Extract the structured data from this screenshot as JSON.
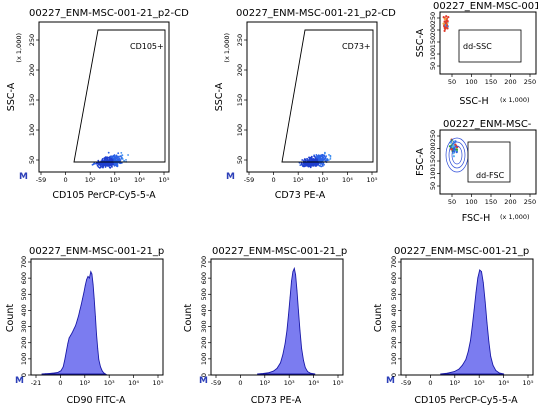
{
  "chart_data": [
    {
      "id": "cd105-dot",
      "type": "scatter",
      "title": "00227_ENM-MSC-001-21_p2-CD",
      "xlabel": "CD105 PerCP-Cy5-5-A",
      "ylabel": "SSC-A",
      "y_multiplier": "(x 1,000)",
      "x_ticks": [
        "-59",
        "0",
        "10²",
        "10³",
        "10⁴",
        "10⁵"
      ],
      "y_ticks": [
        "50",
        "100",
        "150",
        "200",
        "250"
      ],
      "gate_label": "CD105+",
      "marker": "M"
    },
    {
      "id": "cd73-dot",
      "type": "scatter",
      "title": "00227_ENM-MSC-001-21_p2-CD",
      "xlabel": "CD73 PE-A",
      "ylabel": "SSC-A",
      "y_multiplier": "(x 1,000)",
      "x_ticks": [
        "-59",
        "0",
        "10²",
        "10³",
        "10⁴",
        "10⁵"
      ],
      "y_ticks": [
        "50",
        "100",
        "150",
        "200",
        "250"
      ],
      "gate_label": "CD73+",
      "marker": "M"
    },
    {
      "id": "ssc-dot",
      "type": "scatter",
      "title": "00227_ENM-MSC-001-",
      "xlabel": "SSC-H",
      "ylabel": "SSC-A",
      "multiplier": "(x 1,000)",
      "x_ticks": [
        "50",
        "100",
        "150",
        "200",
        "250"
      ],
      "y_ticks": [
        "50",
        "100",
        "150",
        "200",
        "250"
      ],
      "gate_label": "dd-SSC"
    },
    {
      "id": "fsc-dot",
      "type": "scatter",
      "title": "00227_ENM-MSC-",
      "xlabel": "FSC-H",
      "ylabel": "FSC-A",
      "multiplier": "(x 1,000)",
      "x_ticks": [
        "50",
        "100",
        "150",
        "200",
        "250"
      ],
      "y_ticks": [
        "50",
        "100",
        "150",
        "200",
        "250"
      ],
      "gate_label": "dd-FSC"
    },
    {
      "id": "cd90-hist",
      "type": "area",
      "title": "00227_ENM-MSC-001-21_p",
      "xlabel": "CD90 FITC-A",
      "ylabel": "Count",
      "y_ticks": [
        "0",
        "100",
        "200",
        "300",
        "400",
        "500",
        "600",
        "700"
      ],
      "x_ticks": [
        "-21",
        "0",
        "10²",
        "10³",
        "10⁴",
        "10⁵"
      ],
      "marker": "M",
      "x": [
        -0.05,
        0.12,
        0.3,
        0.5,
        0.65,
        0.78,
        0.88,
        0.95,
        1.03,
        1.08,
        1.14,
        1.2,
        1.26,
        1.31,
        1.36,
        1.41,
        1.46,
        1.5,
        1.55,
        1.6,
        1.66,
        1.72,
        1.78,
        1.84,
        1.9,
        1.96,
        2.02,
        2.08,
        2.13,
        2.18,
        2.23,
        2.28,
        2.33,
        2.38,
        2.43,
        2.5,
        2.58,
        2.65,
        2.72
      ],
      "values": [
        0,
        2,
        4,
        6,
        10,
        20,
        45,
        90,
        150,
        190,
        225,
        240,
        255,
        270,
        285,
        300,
        320,
        340,
        365,
        395,
        430,
        470,
        510,
        555,
        590,
        610,
        600,
        640,
        625,
        560,
        470,
        360,
        250,
        160,
        90,
        45,
        18,
        6,
        0
      ]
    },
    {
      "id": "cd73-hist",
      "type": "area",
      "title": "00227_ENM-MSC-001-21_p",
      "xlabel": "CD73 PE-A",
      "ylabel": "Count",
      "y_ticks": [
        "0",
        "100",
        "200",
        "300",
        "400",
        "500",
        "600",
        "700"
      ],
      "x_ticks": [
        "-59",
        "0",
        "10²",
        "10³",
        "10⁴",
        "10⁵"
      ],
      "marker": "M",
      "x": [
        1.5,
        1.75,
        2.0,
        2.2,
        2.35,
        2.5,
        2.6,
        2.7,
        2.78,
        2.85,
        2.92,
        2.98,
        3.04,
        3.1,
        3.16,
        3.22,
        3.28,
        3.35,
        3.42,
        3.5,
        3.58,
        3.68,
        3.8,
        4.0
      ],
      "values": [
        0,
        3,
        8,
        18,
        35,
        70,
        120,
        190,
        270,
        370,
        480,
        580,
        640,
        660,
        620,
        520,
        400,
        270,
        160,
        85,
        40,
        15,
        5,
        0
      ]
    },
    {
      "id": "cd105-hist",
      "type": "area",
      "title": "00227_ENM-MSC-001-21_p",
      "xlabel": "CD105 PerCP-Cy5-5-A",
      "ylabel": "Count",
      "y_ticks": [
        "0",
        "100",
        "200",
        "300",
        "400",
        "500",
        "600",
        "700"
      ],
      "x_ticks": [
        "-59",
        "0",
        "10²",
        "10³",
        "10⁴",
        "10⁵"
      ],
      "marker": "M",
      "x": [
        1.2,
        1.5,
        1.8,
        2.0,
        2.15,
        2.3,
        2.4,
        2.5,
        2.58,
        2.66,
        2.74,
        2.82,
        2.9,
        2.98,
        3.06,
        3.14,
        3.22,
        3.3,
        3.38,
        3.48,
        3.6,
        3.75,
        3.95
      ],
      "values": [
        0,
        5,
        15,
        30,
        55,
        90,
        140,
        210,
        300,
        400,
        510,
        600,
        650,
        640,
        570,
        450,
        320,
        200,
        110,
        55,
        22,
        7,
        0
      ]
    }
  ]
}
